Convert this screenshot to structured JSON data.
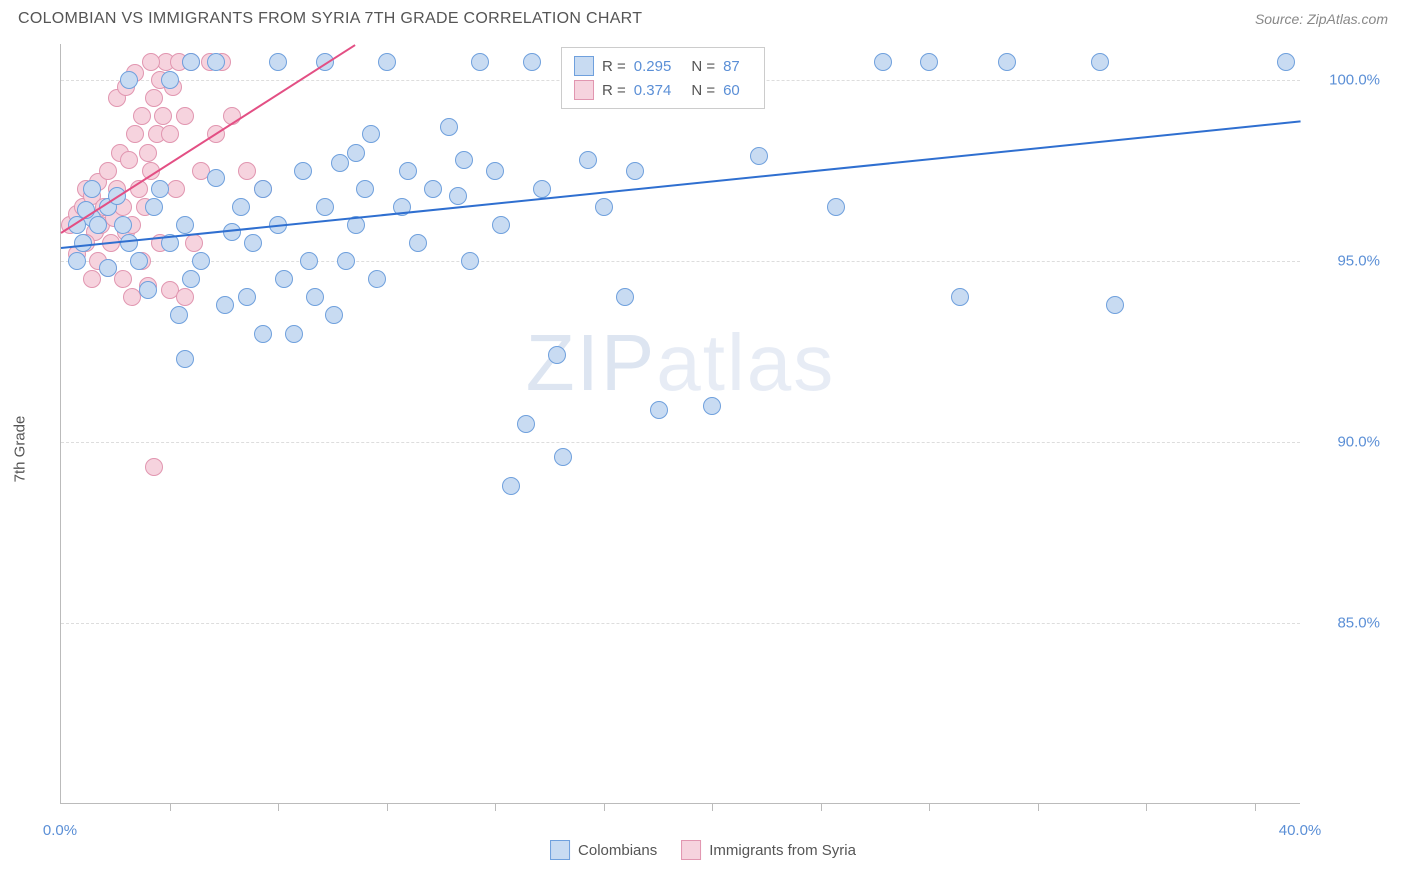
{
  "header": {
    "title": "COLOMBIAN VS IMMIGRANTS FROM SYRIA 7TH GRADE CORRELATION CHART",
    "source": "Source: ZipAtlas.com"
  },
  "chart": {
    "type": "scatter",
    "ylabel": "7th Grade",
    "background_color": "#ffffff",
    "grid_color": "#dddddd",
    "axis_color": "#bbbbbb",
    "tick_label_color": "#5b8fd6",
    "label_color": "#555555",
    "xlim": [
      0,
      40
    ],
    "ylim": [
      80,
      101
    ],
    "x_ticks": [
      0,
      40
    ],
    "x_tick_labels": [
      "0.0%",
      "40.0%"
    ],
    "x_minor_ticks": [
      3.5,
      7,
      10.5,
      14,
      17.5,
      21,
      24.5,
      28,
      31.5,
      35,
      38.5
    ],
    "y_ticks": [
      85,
      90,
      95,
      100
    ],
    "y_tick_labels": [
      "85.0%",
      "90.0%",
      "95.0%",
      "100.0%"
    ],
    "marker_radius": 9,
    "marker_stroke_width": 1,
    "series": [
      {
        "name": "Colombians",
        "fill": "#c8dbf2",
        "stroke": "#6fa0dd",
        "trend_color": "#2f6fd0",
        "r": "0.295",
        "n": "87",
        "trend": {
          "x1": 0,
          "y1": 95.4,
          "x2": 40,
          "y2": 98.9
        },
        "points": [
          [
            1.0,
            96.2
          ],
          [
            1.2,
            96.0
          ],
          [
            0.8,
            96.4
          ],
          [
            1.5,
            96.5
          ],
          [
            1.0,
            97.0
          ],
          [
            0.5,
            96.0
          ],
          [
            0.7,
            95.5
          ],
          [
            1.8,
            96.8
          ],
          [
            2.0,
            96.0
          ],
          [
            2.2,
            95.5
          ],
          [
            2.5,
            95.0
          ],
          [
            3.0,
            96.5
          ],
          [
            3.2,
            97.0
          ],
          [
            3.5,
            95.5
          ],
          [
            4.0,
            96.0
          ],
          [
            4.2,
            94.5
          ],
          [
            4.5,
            95.0
          ],
          [
            4.0,
            92.3
          ],
          [
            5.0,
            97.3
          ],
          [
            5.5,
            95.8
          ],
          [
            5.8,
            96.5
          ],
          [
            6.0,
            94.0
          ],
          [
            6.2,
            95.5
          ],
          [
            6.5,
            93.0
          ],
          [
            7.0,
            96.0
          ],
          [
            7.2,
            94.5
          ],
          [
            7.5,
            93.0
          ],
          [
            7.8,
            97.5
          ],
          [
            8.0,
            95.0
          ],
          [
            8.2,
            94.0
          ],
          [
            8.5,
            96.5
          ],
          [
            8.8,
            93.5
          ],
          [
            9.0,
            97.7
          ],
          [
            9.2,
            95.0
          ],
          [
            9.5,
            96.0
          ],
          [
            9.8,
            97.0
          ],
          [
            10.0,
            98.5
          ],
          [
            10.2,
            94.5
          ],
          [
            10.5,
            100.5
          ],
          [
            11.0,
            96.5
          ],
          [
            11.2,
            97.5
          ],
          [
            11.5,
            95.5
          ],
          [
            12.0,
            97.0
          ],
          [
            12.5,
            98.7
          ],
          [
            12.8,
            96.8
          ],
          [
            13.0,
            97.8
          ],
          [
            13.2,
            95.0
          ],
          [
            13.5,
            100.5
          ],
          [
            14.0,
            97.5
          ],
          [
            14.2,
            96.0
          ],
          [
            14.5,
            88.8
          ],
          [
            15.0,
            90.5
          ],
          [
            15.2,
            100.5
          ],
          [
            15.5,
            97.0
          ],
          [
            16.0,
            92.4
          ],
          [
            16.2,
            89.6
          ],
          [
            16.5,
            100.5
          ],
          [
            17.0,
            97.8
          ],
          [
            17.5,
            96.5
          ],
          [
            18.0,
            100.5
          ],
          [
            18.2,
            94.0
          ],
          [
            18.5,
            97.5
          ],
          [
            19.0,
            100.5
          ],
          [
            19.3,
            90.9
          ],
          [
            4.2,
            100.5
          ],
          [
            5.0,
            100.5
          ],
          [
            7.0,
            100.5
          ],
          [
            8.5,
            100.5
          ],
          [
            9.5,
            98.0
          ],
          [
            6.5,
            97.0
          ],
          [
            3.5,
            100.0
          ],
          [
            2.2,
            100.0
          ],
          [
            21.0,
            91.0
          ],
          [
            22.5,
            97.9
          ],
          [
            25.0,
            96.5
          ],
          [
            26.5,
            100.5
          ],
          [
            28.0,
            100.5
          ],
          [
            29.0,
            94.0
          ],
          [
            30.5,
            100.5
          ],
          [
            33.5,
            100.5
          ],
          [
            34.0,
            93.8
          ],
          [
            39.5,
            100.5
          ],
          [
            1.5,
            94.8
          ],
          [
            0.5,
            95.0
          ],
          [
            2.8,
            94.2
          ],
          [
            3.8,
            93.5
          ],
          [
            5.3,
            93.8
          ]
        ]
      },
      {
        "name": "Immigrants from Syria",
        "fill": "#f6d3de",
        "stroke": "#e196b0",
        "trend_color": "#e34f84",
        "r": "0.374",
        "n": "60",
        "trend": {
          "x1": 0,
          "y1": 95.8,
          "x2": 9.5,
          "y2": 101.0
        },
        "points": [
          [
            0.3,
            96.0
          ],
          [
            0.5,
            96.3
          ],
          [
            0.7,
            96.5
          ],
          [
            0.8,
            97.0
          ],
          [
            1.0,
            96.8
          ],
          [
            1.1,
            95.8
          ],
          [
            1.2,
            97.2
          ],
          [
            1.3,
            96.0
          ],
          [
            1.4,
            96.5
          ],
          [
            1.5,
            97.5
          ],
          [
            1.6,
            95.5
          ],
          [
            1.7,
            96.2
          ],
          [
            1.8,
            97.0
          ],
          [
            1.9,
            98.0
          ],
          [
            2.0,
            96.5
          ],
          [
            2.1,
            95.8
          ],
          [
            2.2,
            97.8
          ],
          [
            2.3,
            96.0
          ],
          [
            2.4,
            98.5
          ],
          [
            2.5,
            97.0
          ],
          [
            2.6,
            99.0
          ],
          [
            2.7,
            96.5
          ],
          [
            2.8,
            98.0
          ],
          [
            2.9,
            97.5
          ],
          [
            3.0,
            99.5
          ],
          [
            3.1,
            98.5
          ],
          [
            3.2,
            100.0
          ],
          [
            3.3,
            99.0
          ],
          [
            3.4,
            100.5
          ],
          [
            3.5,
            98.5
          ],
          [
            3.6,
            99.8
          ],
          [
            3.7,
            97.0
          ],
          [
            3.8,
            100.5
          ],
          [
            4.0,
            99.0
          ],
          [
            4.2,
            100.5
          ],
          [
            4.5,
            97.5
          ],
          [
            4.8,
            100.5
          ],
          [
            5.0,
            98.5
          ],
          [
            5.2,
            100.5
          ],
          [
            5.5,
            99.0
          ],
          [
            2.0,
            94.5
          ],
          [
            2.3,
            94.0
          ],
          [
            2.8,
            94.3
          ],
          [
            1.0,
            94.5
          ],
          [
            1.5,
            94.8
          ],
          [
            3.0,
            89.3
          ],
          [
            3.5,
            94.2
          ],
          [
            4.0,
            94.0
          ],
          [
            0.5,
            95.2
          ],
          [
            0.8,
            95.5
          ],
          [
            1.2,
            95.0
          ],
          [
            6.0,
            97.5
          ],
          [
            6.5,
            97.0
          ],
          [
            3.2,
            95.5
          ],
          [
            2.6,
            95.0
          ],
          [
            4.3,
            95.5
          ],
          [
            1.8,
            99.5
          ],
          [
            2.1,
            99.8
          ],
          [
            2.4,
            100.2
          ],
          [
            2.9,
            100.5
          ]
        ]
      }
    ],
    "legend_bottom": [
      {
        "label": "Colombians",
        "fill": "#c8dbf2",
        "stroke": "#6fa0dd"
      },
      {
        "label": "Immigrants from Syria",
        "fill": "#f6d3de",
        "stroke": "#e196b0"
      }
    ],
    "watermark": {
      "z": "ZIP",
      "rest": "atlas"
    }
  }
}
